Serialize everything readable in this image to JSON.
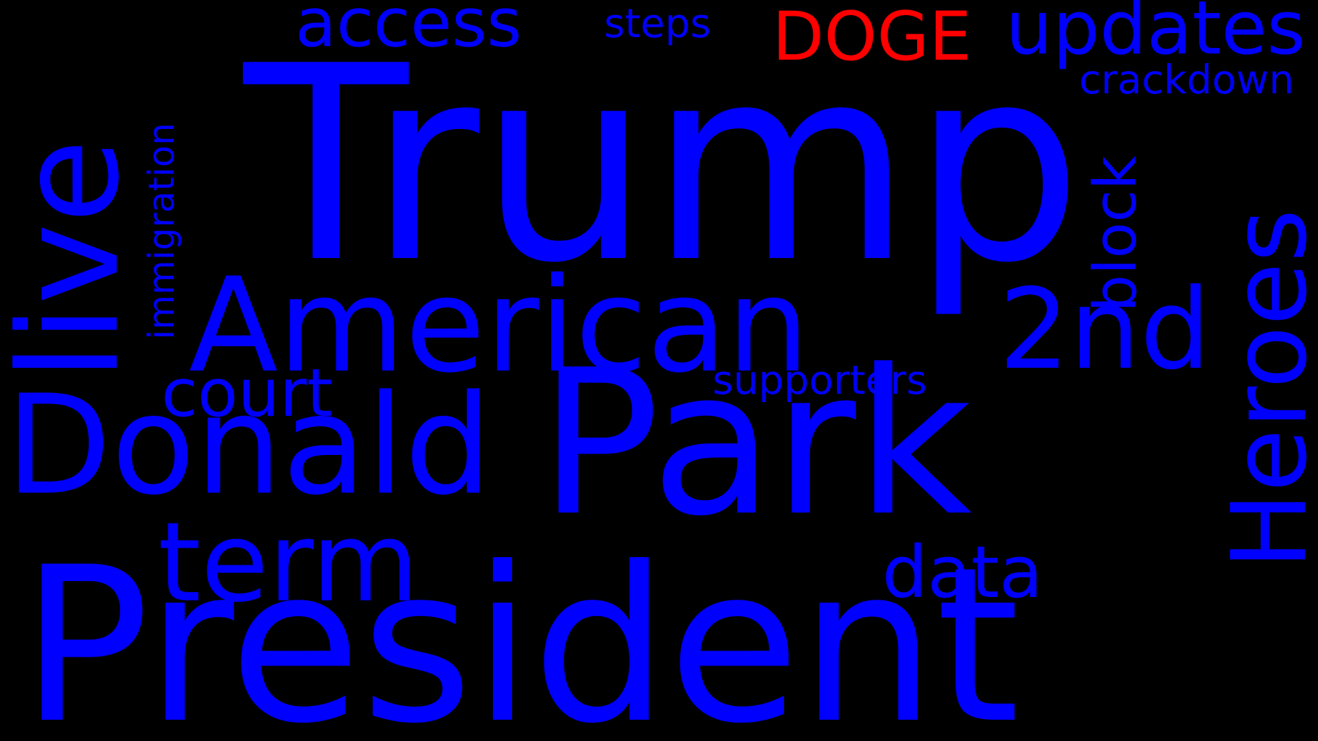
{
  "word_cloud": {
    "background_color": "#000000",
    "primary_color": "#0000ff",
    "highlight_color": "#ff0000",
    "words": {
      "trump": "Trump",
      "president": "President",
      "park": "Park",
      "donald": "Donald",
      "american": "American",
      "live": "live",
      "heroes": "Heroes",
      "second": "2nd",
      "term": "term",
      "updates": "updates",
      "access": "access",
      "doge": "DOGE",
      "data": "data",
      "court": "court",
      "block": "block",
      "crackdown": "crackdown",
      "immigration": "immigration",
      "supporters": "supporters",
      "steps": "steps"
    }
  }
}
